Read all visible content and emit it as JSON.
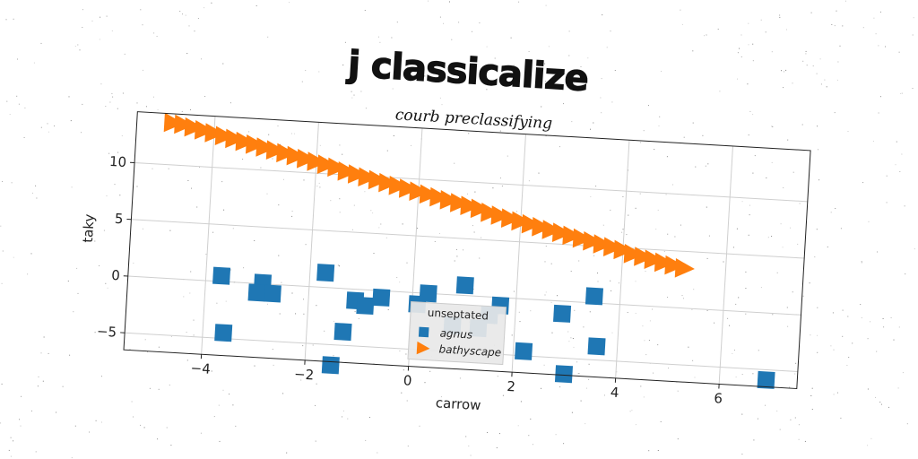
{
  "chart_data": {
    "type": "scatter",
    "title": "j classicalize",
    "subtitle": "courb preclassifying",
    "xlabel": "carrow",
    "ylabel": "taky",
    "xlim": [
      -5.5,
      7.5
    ],
    "ylim": [
      -6.5,
      14.5
    ],
    "x_ticks": [
      -4,
      -2,
      0,
      2,
      4,
      6
    ],
    "y_ticks": [
      -5,
      0,
      5,
      10
    ],
    "x_tick_labels": [
      "−4",
      "−2",
      "0",
      "2",
      "4",
      "6"
    ],
    "y_tick_labels": [
      "−5",
      "0",
      "5",
      "10"
    ],
    "grid": true,
    "legend": {
      "title": "unseptated",
      "position": "lower-center"
    },
    "series": [
      {
        "name": "agnus",
        "marker": "square",
        "color": "#1f77b4",
        "points": [
          [
            -3.7,
            0.5
          ],
          [
            -3.6,
            -4.5
          ],
          [
            -2.9,
            0.1
          ],
          [
            -3.0,
            -0.8
          ],
          [
            -2.7,
            -0.8
          ],
          [
            -1.7,
            1.3
          ],
          [
            -1.5,
            -6.8
          ],
          [
            -1.3,
            -3.8
          ],
          [
            -1.1,
            -1.0
          ],
          [
            -0.9,
            -1.4
          ],
          [
            -0.6,
            -0.6
          ],
          [
            0.1,
            -1.0
          ],
          [
            0.3,
            0.0
          ],
          [
            0.8,
            -2.7
          ],
          [
            1.0,
            0.9
          ],
          [
            1.3,
            -2.8
          ],
          [
            1.5,
            -1.6
          ],
          [
            1.7,
            -0.7
          ],
          [
            2.2,
            -4.6
          ],
          [
            2.9,
            -1.1
          ],
          [
            3.0,
            -6.4
          ],
          [
            3.5,
            0.6
          ],
          [
            3.6,
            -3.8
          ],
          [
            6.9,
            -5.9
          ]
        ]
      },
      {
        "name": "bathyscape",
        "marker": "triangle-right",
        "color": "#ff7f0e",
        "points": [
          [
            -4.8,
            13.7
          ],
          [
            -4.6,
            13.6
          ],
          [
            -4.4,
            13.4
          ],
          [
            -4.2,
            13.2
          ],
          [
            -4.0,
            13.0
          ],
          [
            -3.8,
            12.8
          ],
          [
            -3.6,
            12.6
          ],
          [
            -3.4,
            12.4
          ],
          [
            -3.2,
            12.2
          ],
          [
            -3.0,
            12.0
          ],
          [
            -2.8,
            11.8
          ],
          [
            -2.6,
            11.6
          ],
          [
            -2.4,
            11.4
          ],
          [
            -2.2,
            11.2
          ],
          [
            -2.0,
            11.0
          ],
          [
            -1.8,
            10.8
          ],
          [
            -1.6,
            10.6
          ],
          [
            -1.4,
            10.3
          ],
          [
            -1.2,
            10.1
          ],
          [
            -1.0,
            9.9
          ],
          [
            -0.8,
            9.7
          ],
          [
            -0.6,
            9.5
          ],
          [
            -0.4,
            9.3
          ],
          [
            -0.2,
            9.1
          ],
          [
            0.0,
            8.9
          ],
          [
            0.2,
            8.7
          ],
          [
            0.4,
            8.5
          ],
          [
            0.6,
            8.3
          ],
          [
            0.8,
            8.1
          ],
          [
            1.0,
            7.9
          ],
          [
            1.2,
            7.7
          ],
          [
            1.4,
            7.4
          ],
          [
            1.6,
            7.2
          ],
          [
            1.8,
            7.0
          ],
          [
            2.0,
            6.8
          ],
          [
            2.2,
            6.6
          ],
          [
            2.4,
            6.4
          ],
          [
            2.6,
            6.2
          ],
          [
            2.8,
            6.0
          ],
          [
            3.0,
            5.8
          ],
          [
            3.2,
            5.6
          ],
          [
            3.4,
            5.4
          ],
          [
            3.6,
            5.2
          ],
          [
            3.8,
            5.0
          ],
          [
            4.0,
            4.8
          ],
          [
            4.2,
            4.5
          ],
          [
            4.4,
            4.3
          ],
          [
            4.6,
            4.1
          ],
          [
            4.8,
            3.9
          ],
          [
            5.0,
            3.7
          ],
          [
            5.2,
            3.5
          ]
        ]
      }
    ]
  }
}
